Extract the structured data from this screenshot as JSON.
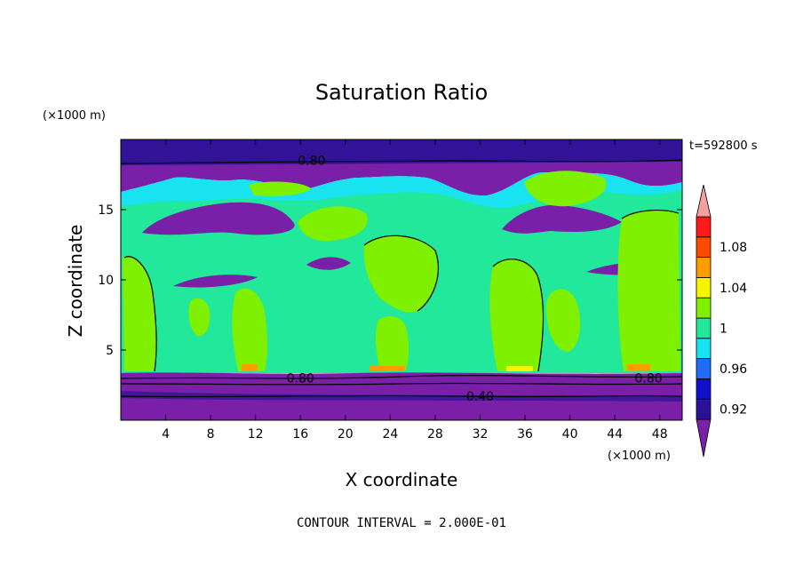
{
  "chart_data": {
    "type": "heatmap",
    "title": "Saturation Ratio",
    "xlabel": "X coordinate",
    "ylabel": "Z coordinate",
    "x_unit": "(×1000 m)",
    "y_unit": "(×1000 m)",
    "time_label": "t=592800 s",
    "footer": "CONTOUR INTERVAL = 2.000E-01",
    "xlim": [
      0,
      50
    ],
    "ylim": [
      0,
      20
    ],
    "x_ticks": [
      4,
      8,
      12,
      16,
      20,
      24,
      28,
      32,
      36,
      40,
      44,
      48
    ],
    "y_ticks": [
      5,
      10,
      15
    ],
    "contour_labels": [
      {
        "text": "0.80",
        "x": 17,
        "z": 18.5
      },
      {
        "text": "0.80",
        "x": 16,
        "z": 3.0
      },
      {
        "text": "0.80",
        "x": 47,
        "z": 3.0
      },
      {
        "text": "0.40",
        "x": 32,
        "z": 1.7
      }
    ],
    "colorbar": {
      "tick_labels": [
        "1.08",
        "1.04",
        "1",
        "0.96",
        "0.92"
      ],
      "colors": [
        "#7a1fa8",
        "#2a1296",
        "#1010c8",
        "#1f6cf5",
        "#19e3f0",
        "#21e89a",
        "#7ef000",
        "#f5f500",
        "#ff9d00",
        "#ff4b00",
        "#ff1a1a",
        "#f5a0a0"
      ]
    }
  }
}
